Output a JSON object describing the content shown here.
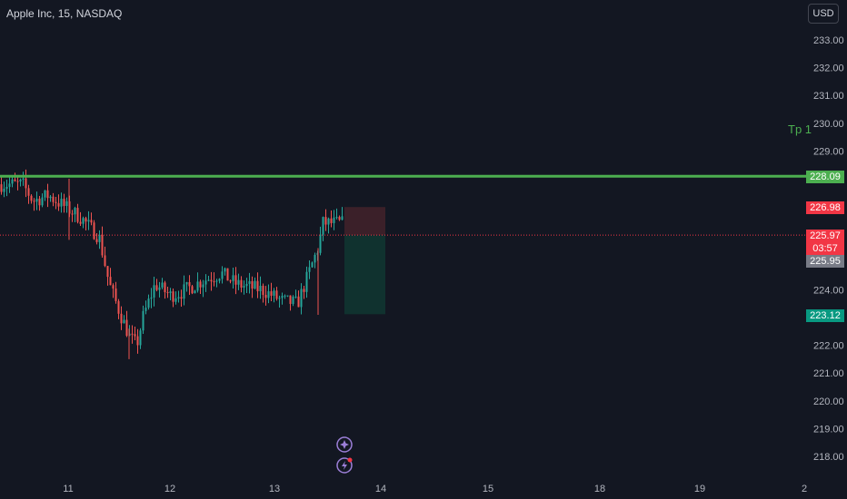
{
  "header": {
    "title": "Apple Inc, 15, NASDAQ",
    "currency": "USD"
  },
  "labels": {
    "tp": "Tp 1"
  },
  "price_tags": {
    "green_line": "228.09",
    "stop": "226.98",
    "last": "225.97",
    "countdown": "03:57",
    "prev_close": "225.95",
    "target": "223.12"
  },
  "colors": {
    "background": "#131722",
    "up": "#26a69a",
    "down": "#ef5350",
    "tp_line": "#4caf50",
    "stop_zone": "#3b2029",
    "target_zone": "#10322f"
  },
  "chart_data": {
    "type": "candlestick",
    "title": "Apple Inc, 15, NASDAQ",
    "symbol": "AAPL",
    "interval": "15",
    "exchange": "NASDAQ",
    "y_axis_side": "right",
    "y_ticks": [
      "233.00",
      "232.00",
      "231.00",
      "230.00",
      "229.00",
      "228.00",
      "224.00",
      "222.00",
      "221.00",
      "220.00",
      "219.00",
      "218.00"
    ],
    "y_range": [
      217.5,
      234.0
    ],
    "x_ticks": [
      "11",
      "12",
      "13",
      "14",
      "15",
      "18",
      "19",
      "2"
    ],
    "horizontal_levels": [
      {
        "label": "Tp 1",
        "price": 228.09
      }
    ],
    "position": {
      "type": "short",
      "entry": 225.97,
      "stop": 226.98,
      "target": 223.12
    },
    "last_price": 225.97,
    "previous_close": 225.95,
    "price_path": [
      {
        "day": 10.55,
        "price": 227.8
      },
      {
        "day": 10.65,
        "price": 227.2
      },
      {
        "day": 10.8,
        "price": 227.4
      },
      {
        "day": 11.0,
        "price": 226.9
      },
      {
        "day": 11.12,
        "price": 226.6
      },
      {
        "day": 11.3,
        "price": 225.9
      },
      {
        "day": 11.4,
        "price": 224.2
      },
      {
        "day": 11.5,
        "price": 223.2
      },
      {
        "day": 11.6,
        "price": 222.3
      },
      {
        "day": 11.67,
        "price": 222.0
      },
      {
        "day": 11.73,
        "price": 223.0
      },
      {
        "day": 11.85,
        "price": 224.2
      },
      {
        "day": 12.0,
        "price": 223.8
      },
      {
        "day": 12.1,
        "price": 223.9
      },
      {
        "day": 12.3,
        "price": 224.3
      },
      {
        "day": 12.5,
        "price": 224.6
      },
      {
        "day": 12.65,
        "price": 224.2
      },
      {
        "day": 12.9,
        "price": 224.0
      },
      {
        "day": 13.1,
        "price": 223.6
      },
      {
        "day": 13.25,
        "price": 223.5
      },
      {
        "day": 13.38,
        "price": 224.8
      },
      {
        "day": 13.45,
        "price": 225.5
      },
      {
        "day": 13.5,
        "price": 226.4
      }
    ],
    "icons": [
      "diamond-star-icon",
      "lightning-alert-icon"
    ]
  }
}
